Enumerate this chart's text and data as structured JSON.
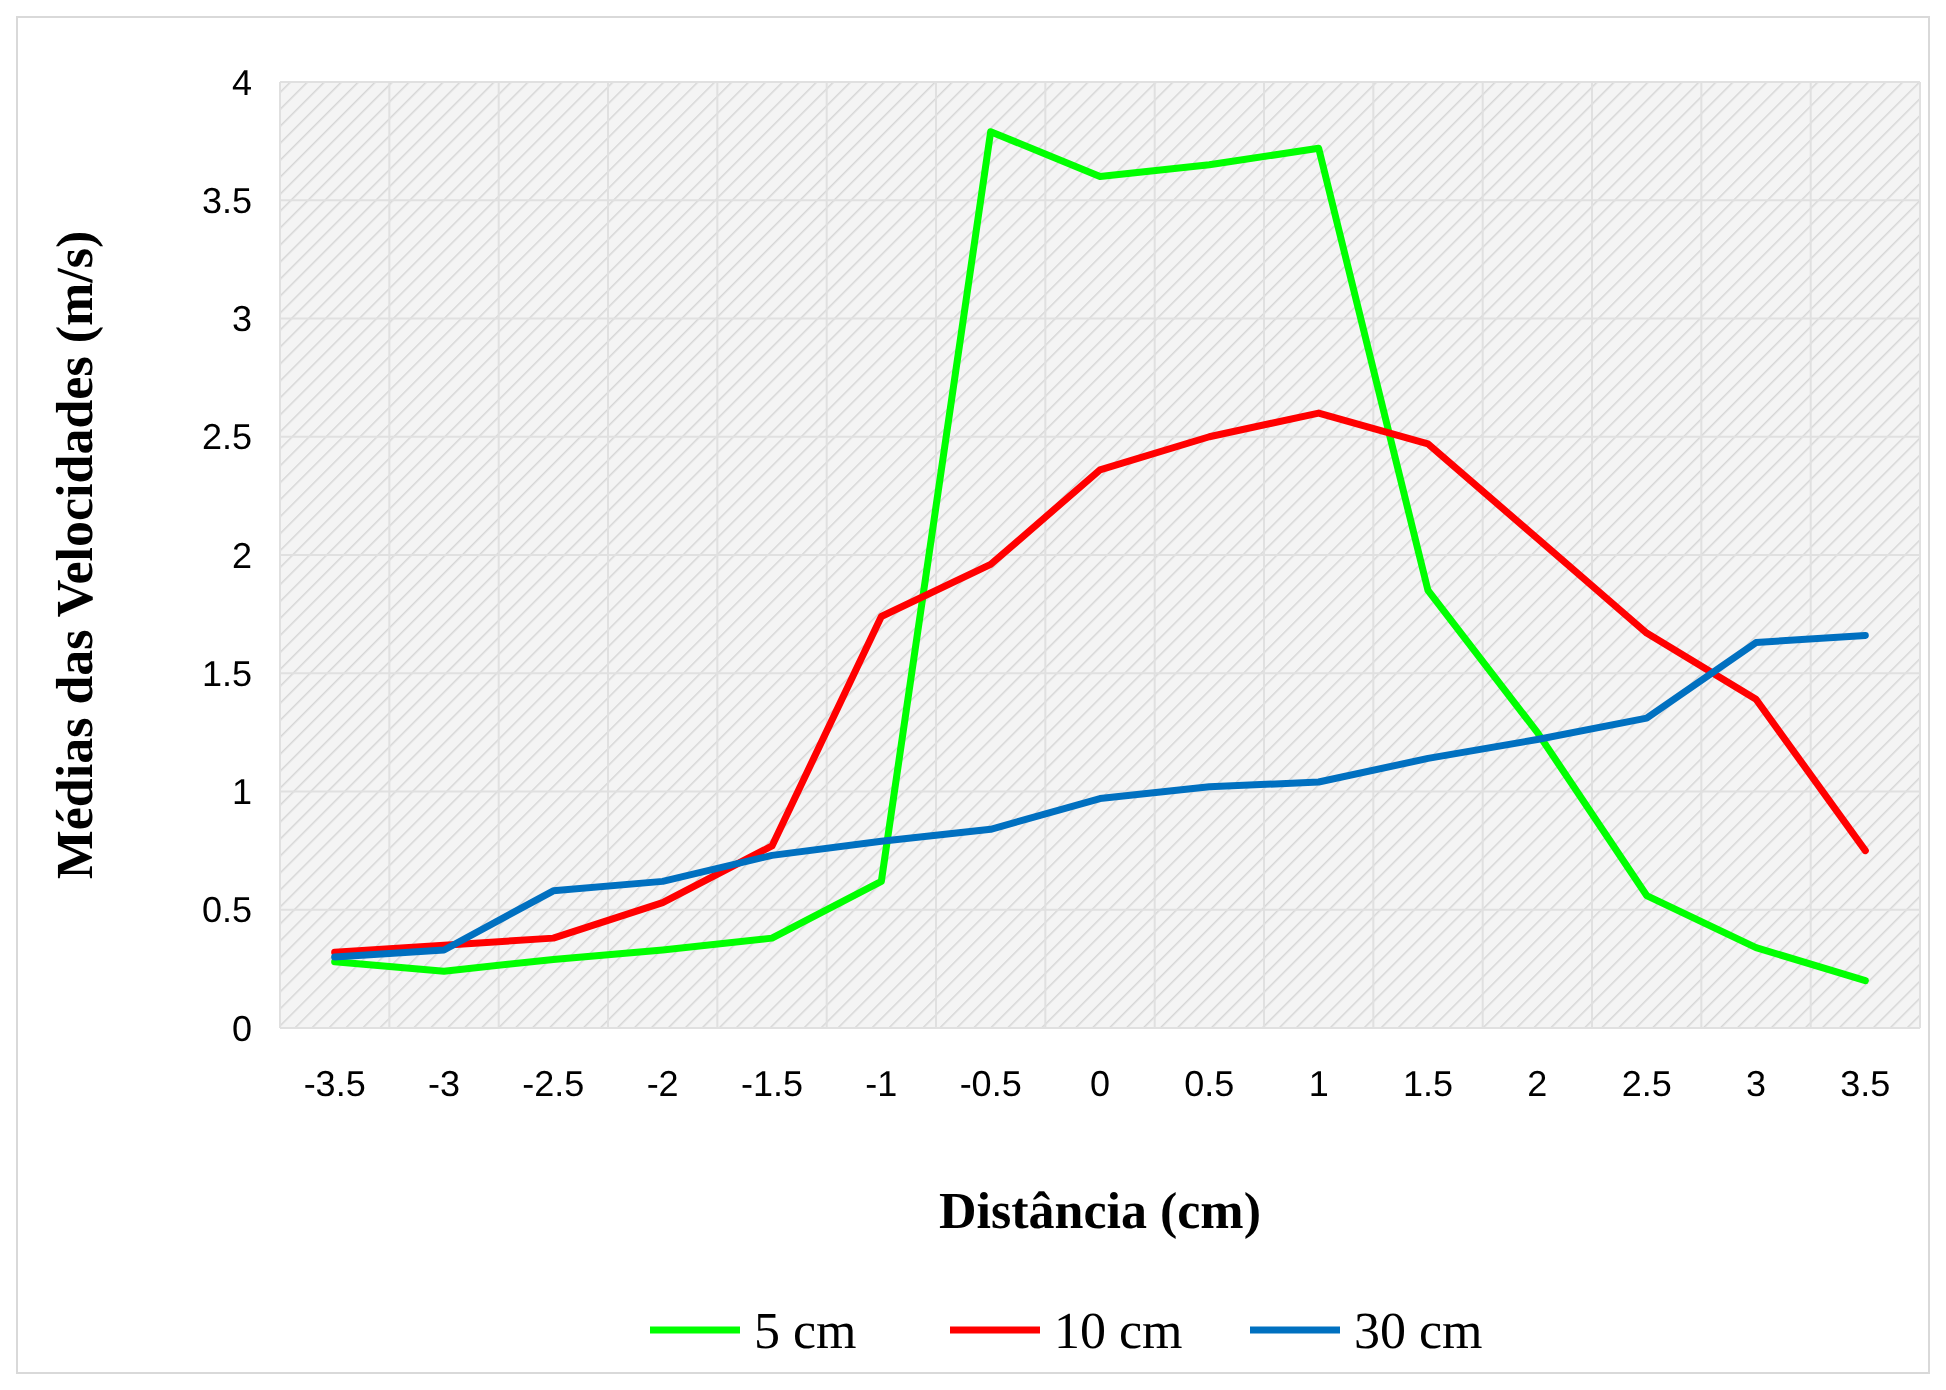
{
  "chart_data": {
    "type": "line",
    "xlabel": "Distância  (cm)",
    "ylabel": "Médias das Velocidades (m/s)",
    "categories": [
      "-3.5",
      "-3",
      "-2.5",
      "-2",
      "-1.5",
      "-1",
      "-0.5",
      "0",
      "0.5",
      "1",
      "1.5",
      "2",
      "2.5",
      "3",
      "3.5"
    ],
    "series": [
      {
        "name": "5 cm",
        "color": "#00ff00",
        "values": [
          0.28,
          0.24,
          0.29,
          0.33,
          0.38,
          0.62,
          3.79,
          3.6,
          3.65,
          3.72,
          1.85,
          1.25,
          0.56,
          0.34,
          0.2
        ]
      },
      {
        "name": "10 cm",
        "color": "#ff0000",
        "values": [
          0.32,
          0.35,
          0.38,
          0.53,
          0.77,
          1.74,
          1.96,
          2.36,
          2.5,
          2.6,
          2.47,
          2.07,
          1.67,
          1.39,
          0.75
        ]
      },
      {
        "name": "30 cm",
        "color": "#0070c0",
        "values": [
          0.3,
          0.33,
          0.58,
          0.62,
          0.73,
          0.79,
          0.84,
          0.97,
          1.02,
          1.04,
          1.14,
          1.22,
          1.31,
          1.63,
          1.66
        ]
      }
    ],
    "ylim": [
      0,
      4
    ],
    "yticks": [
      0,
      0.5,
      1,
      1.5,
      2,
      2.5,
      3,
      3.5,
      4
    ],
    "grid": true,
    "legend": "bottom",
    "marker": "none",
    "line_style": "solid"
  }
}
